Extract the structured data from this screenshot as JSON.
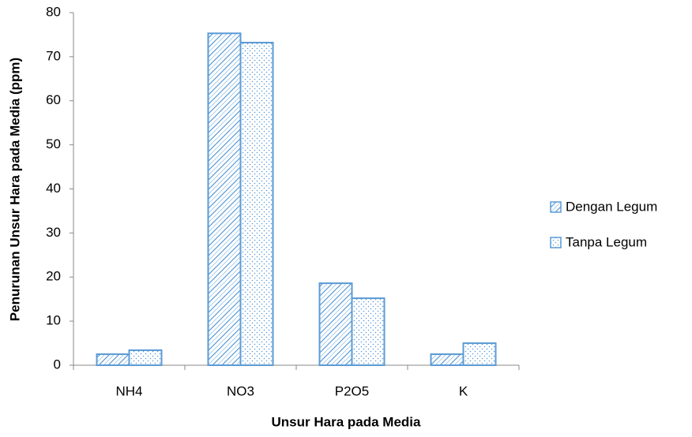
{
  "chart_data": {
    "type": "bar",
    "x_label": "Unsur Hara pada Media",
    "y_label": "Penurunan Unsur Hara pada Media (ppm)",
    "categories": [
      "NH4",
      "NO3",
      "P2O5",
      "K"
    ],
    "series": [
      {
        "name": "Dengan Legum",
        "color": "#5b9bd5",
        "pattern": "crosshatch",
        "values": [
          2.5,
          75.3,
          18.6,
          2.5
        ]
      },
      {
        "name": "Tanpa Legum",
        "color": "#5b9bd5",
        "pattern": "dots",
        "values": [
          3.4,
          73.2,
          15.2,
          5.0
        ]
      }
    ],
    "ylim": [
      0,
      80
    ],
    "yticks": [
      0,
      10,
      20,
      30,
      40,
      50,
      60,
      70,
      80
    ],
    "grid": false,
    "legend": "right"
  }
}
